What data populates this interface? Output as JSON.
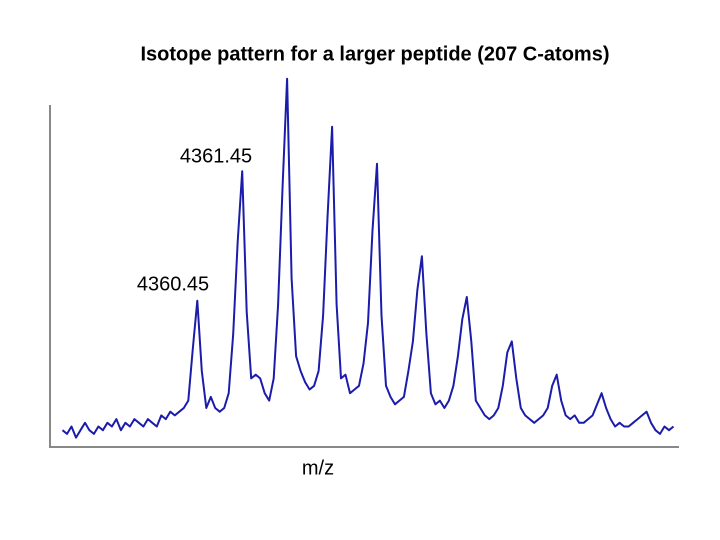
{
  "chart_data": {
    "type": "line",
    "title": "Isotope pattern for a larger peptide (207 C-atoms)",
    "x_label": "m/z",
    "annotations": [
      "4360.45",
      "4361.45"
    ],
    "color": "#1c1caa",
    "xlim": [
      4357.35,
      4371.15
    ],
    "ylim": [
      0,
      100
    ],
    "x": [
      4357.45,
      4357.55,
      4357.65,
      4357.75,
      4357.85,
      4357.95,
      4358.05,
      4358.15,
      4358.25,
      4358.35,
      4358.45,
      4358.55,
      4358.65,
      4358.75,
      4358.85,
      4358.95,
      4359.05,
      4359.15,
      4359.25,
      4359.35,
      4359.45,
      4359.55,
      4359.65,
      4359.75,
      4359.85,
      4359.95,
      4360.05,
      4360.15,
      4360.25,
      4360.35,
      4360.45,
      4360.55,
      4360.65,
      4360.75,
      4360.85,
      4360.95,
      4361.05,
      4361.15,
      4361.25,
      4361.35,
      4361.45,
      4361.55,
      4361.65,
      4361.75,
      4361.85,
      4361.95,
      4362.05,
      4362.15,
      4362.25,
      4362.35,
      4362.45,
      4362.55,
      4362.65,
      4362.75,
      4362.85,
      4362.95,
      4363.05,
      4363.15,
      4363.25,
      4363.35,
      4363.45,
      4363.55,
      4363.65,
      4363.75,
      4363.85,
      4363.95,
      4364.05,
      4364.15,
      4364.25,
      4364.35,
      4364.45,
      4364.55,
      4364.65,
      4364.75,
      4364.85,
      4364.95,
      4365.05,
      4365.15,
      4365.25,
      4365.35,
      4365.45,
      4365.55,
      4365.65,
      4365.75,
      4365.85,
      4365.95,
      4366.05,
      4366.15,
      4366.25,
      4366.35,
      4366.45,
      4366.55,
      4366.65,
      4366.75,
      4366.85,
      4366.95,
      4367.05,
      4367.15,
      4367.25,
      4367.35,
      4367.45,
      4367.55,
      4367.65,
      4367.75,
      4367.85,
      4367.95,
      4368.05,
      4368.15,
      4368.25,
      4368.35,
      4368.45,
      4368.55,
      4368.65,
      4368.75,
      4368.85,
      4368.95,
      4369.05,
      4369.15,
      4369.25,
      4369.35,
      4369.45,
      4369.55,
      4369.65,
      4369.75,
      4369.85,
      4369.95,
      4370.05,
      4370.15,
      4370.25,
      4370.35,
      4370.45,
      4370.55,
      4370.65,
      4370.75,
      4370.85,
      4370.95,
      4371.05
    ],
    "values": [
      4,
      3,
      5,
      2,
      4,
      6,
      4,
      3,
      5,
      4,
      6,
      5,
      7,
      4,
      6,
      5,
      7,
      6,
      5,
      7,
      6,
      5,
      8,
      7,
      9,
      8,
      9,
      10,
      12,
      26,
      39,
      20,
      10,
      13,
      10,
      9,
      10,
      14,
      30,
      55,
      74,
      36,
      18,
      19,
      18,
      14,
      12,
      18,
      38,
      70,
      99,
      45,
      24,
      20,
      17,
      15,
      16,
      20,
      35,
      62,
      86,
      38,
      18,
      19,
      14,
      15,
      16,
      22,
      33,
      58,
      76,
      35,
      16,
      13,
      11,
      12,
      13,
      20,
      28,
      42,
      51,
      30,
      14,
      11,
      12,
      10,
      12,
      16,
      24,
      34,
      40,
      28,
      12,
      10,
      8,
      7,
      8,
      10,
      16,
      25,
      28,
      18,
      10,
      8,
      7,
      6,
      7,
      8,
      10,
      16,
      19,
      12,
      8,
      7,
      8,
      6,
      6,
      7,
      8,
      11,
      14,
      10,
      7,
      5,
      6,
      5,
      5,
      6,
      7,
      8,
      9,
      6,
      4,
      3,
      5,
      4,
      5
    ]
  }
}
